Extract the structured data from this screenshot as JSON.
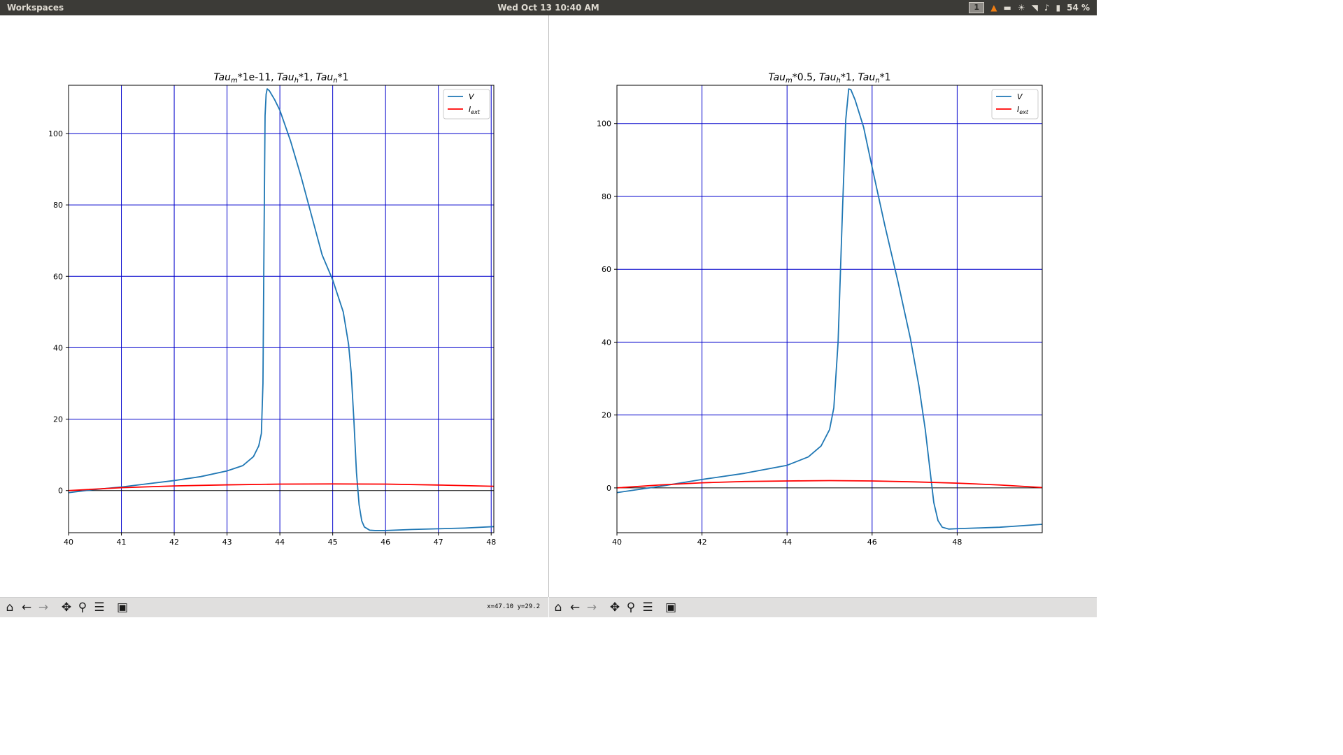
{
  "topbar": {
    "workspaces_label": "Workspaces",
    "clock": "Wed Oct 13  10:40 AM",
    "workspace_number": "1",
    "battery": "54 %"
  },
  "toolbar": {
    "coord_readout": "x=47.10 y=29.2"
  },
  "colors": {
    "v_line": "#1f77b4",
    "iext_line": "#ff0000",
    "grid": "#0000cc"
  },
  "chart_data": [
    {
      "type": "line",
      "title_main": "Tau",
      "title_parts": [
        {
          "base": "Tau",
          "sub": "m",
          "suffix": "*1e-11, "
        },
        {
          "base": "Tau",
          "sub": "h",
          "suffix": "*1, "
        },
        {
          "base": "Tau",
          "sub": "n",
          "suffix": "*1"
        }
      ],
      "xlim": [
        40,
        48.05
      ],
      "ylim": [
        -11.8,
        113.5
      ],
      "xticks": [
        "40",
        "41",
        "42",
        "43",
        "44",
        "45",
        "46",
        "47",
        "48"
      ],
      "yticks": [
        "0",
        "20",
        "40",
        "60",
        "80",
        "100"
      ],
      "grid": true,
      "legend_position": "top-right",
      "legend": [
        {
          "label": "V",
          "sub": ""
        },
        {
          "label": "I",
          "sub": "ext"
        }
      ],
      "series": [
        {
          "name": "V",
          "x": [
            40,
            40.5,
            41,
            41.5,
            42,
            42.5,
            43,
            43.3,
            43.5,
            43.6,
            43.65,
            43.68,
            43.7,
            43.72,
            43.74,
            43.76,
            43.8,
            43.9,
            44,
            44.2,
            44.4,
            44.6,
            44.8,
            45,
            45.2,
            45.3,
            45.35,
            45.4,
            45.45,
            45.5,
            45.55,
            45.6,
            45.7,
            45.8,
            46,
            46.5,
            47,
            47.5,
            48.05
          ],
          "y": [
            -0.6,
            0.3,
            1.0,
            1.9,
            2.8,
            3.9,
            5.5,
            7.0,
            9.5,
            12.5,
            16,
            30,
            70,
            105,
            111,
            112.5,
            112,
            109.5,
            106.5,
            98,
            88,
            77,
            66,
            59,
            50,
            41,
            33,
            20,
            5,
            -4,
            -8.5,
            -10.2,
            -11.1,
            -11.2,
            -11.2,
            -10.9,
            -10.7,
            -10.5,
            -10.1
          ]
        },
        {
          "name": "Iext",
          "x": [
            40,
            41,
            42,
            43,
            44,
            45,
            46,
            47,
            48.05
          ],
          "y": [
            0,
            0.8,
            1.3,
            1.6,
            1.8,
            1.85,
            1.8,
            1.55,
            1.2
          ]
        }
      ]
    },
    {
      "type": "line",
      "title_parts": [
        {
          "base": "Tau",
          "sub": "m",
          "suffix": "*0.5, "
        },
        {
          "base": "Tau",
          "sub": "h",
          "suffix": "*1, "
        },
        {
          "base": "Tau",
          "sub": "n",
          "suffix": "*1"
        }
      ],
      "xlim": [
        40,
        50
      ],
      "ylim": [
        -12.3,
        110.5
      ],
      "xticks": [
        "40",
        "42",
        "44",
        "46",
        "48"
      ],
      "yticks": [
        "0",
        "20",
        "40",
        "60",
        "80",
        "100"
      ],
      "grid": true,
      "legend_position": "top-right",
      "legend": [
        {
          "label": "V",
          "sub": ""
        },
        {
          "label": "I",
          "sub": "ext"
        }
      ],
      "series": [
        {
          "name": "V",
          "x": [
            40,
            41,
            42,
            43,
            44,
            44.5,
            44.8,
            45.0,
            45.1,
            45.2,
            45.3,
            45.38,
            45.45,
            45.5,
            45.6,
            45.8,
            46.0,
            46.3,
            46.6,
            46.9,
            47.1,
            47.25,
            47.35,
            47.45,
            47.55,
            47.65,
            47.8,
            48.0,
            48.5,
            49,
            49.5,
            50
          ],
          "y": [
            -1.3,
            0.4,
            2.3,
            4.0,
            6.2,
            8.5,
            11.5,
            16,
            22,
            40,
            75,
            101,
            109.5,
            109.3,
            106.5,
            99,
            88,
            72,
            57,
            41,
            28,
            16,
            6,
            -4,
            -9,
            -10.8,
            -11.3,
            -11.2,
            -11.0,
            -10.8,
            -10.4,
            -10.0
          ]
        },
        {
          "name": "Iext",
          "x": [
            40,
            41,
            42,
            43,
            44,
            45,
            46,
            47,
            48,
            49,
            50
          ],
          "y": [
            0,
            0.8,
            1.4,
            1.75,
            1.9,
            2.0,
            1.9,
            1.65,
            1.3,
            0.8,
            0.1
          ]
        }
      ]
    }
  ]
}
